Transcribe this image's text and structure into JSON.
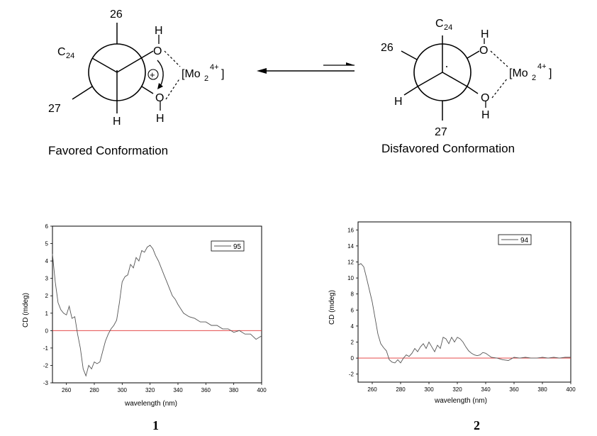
{
  "scheme": {
    "left": {
      "caption": "Favored Conformation",
      "top_sub": "26",
      "c24_base": "C",
      "c24_sub": "24",
      "bottom_left": "27",
      "bottom_h": "H",
      "oh_top_h": "H",
      "oh_top_o": "O",
      "oh_bot_o": "O",
      "oh_bot_h": "H",
      "plus": "+",
      "metal_open": "[Mo",
      "metal_sub": "2",
      "metal_sup": "4+",
      "metal_close": "]"
    },
    "right": {
      "caption": "Disfavored Conformation",
      "top_base": "C",
      "top_sub": "24",
      "left_top": "26",
      "left_h": "H",
      "bottom": "27",
      "oh_top_h": "H",
      "oh_top_o": "O",
      "oh_bot_o": "O",
      "oh_bot_h": "H",
      "metal_open": "[Mo",
      "metal_sub": "2",
      "metal_sup": "4+",
      "metal_close": "]"
    }
  },
  "chart_data": [
    {
      "type": "line",
      "panel_label": "1",
      "xlabel": "wavelength (nm)",
      "ylabel": "CD (mdeg)",
      "xlim": [
        250,
        400
      ],
      "ylim": [
        -3,
        6
      ],
      "xticks": [
        260,
        280,
        300,
        320,
        340,
        360,
        380,
        400
      ],
      "yticks": [
        -3,
        -2,
        -1,
        0,
        1,
        2,
        3,
        4,
        5,
        6
      ],
      "legend_position": "top-right",
      "series": [
        {
          "name": "95",
          "color": "#555555",
          "x": [
            250,
            252,
            254,
            256,
            258,
            260,
            262,
            264,
            266,
            268,
            270,
            272,
            274,
            276,
            278,
            280,
            282,
            284,
            286,
            288,
            290,
            292,
            294,
            296,
            298,
            300,
            302,
            304,
            306,
            308,
            310,
            312,
            314,
            316,
            318,
            320,
            322,
            324,
            326,
            328,
            330,
            332,
            334,
            336,
            338,
            340,
            344,
            348,
            352,
            356,
            360,
            364,
            368,
            372,
            376,
            380,
            384,
            388,
            392,
            396,
            400
          ],
          "y": [
            4.4,
            2.8,
            1.6,
            1.2,
            1.0,
            0.9,
            1.4,
            0.7,
            0.8,
            -0.2,
            -1.0,
            -2.2,
            -2.6,
            -2.0,
            -2.2,
            -1.8,
            -1.9,
            -1.8,
            -1.2,
            -0.6,
            -0.2,
            0.1,
            0.3,
            0.6,
            1.6,
            2.8,
            3.1,
            3.2,
            3.8,
            3.6,
            4.2,
            4.0,
            4.6,
            4.5,
            4.8,
            4.9,
            4.7,
            4.3,
            4.0,
            3.6,
            3.2,
            2.8,
            2.4,
            2.0,
            1.8,
            1.5,
            1.0,
            0.8,
            0.7,
            0.5,
            0.5,
            0.3,
            0.3,
            0.1,
            0.1,
            -0.1,
            0.0,
            -0.2,
            -0.2,
            -0.5,
            -0.3
          ]
        }
      ],
      "reference_line": {
        "y": 0,
        "color": "#e03030"
      }
    },
    {
      "type": "line",
      "panel_label": "2",
      "xlabel": "wavelength (nm)",
      "ylabel": "CD (mdeg)",
      "xlim": [
        250,
        400
      ],
      "ylim": [
        -3,
        17
      ],
      "xticks": [
        260,
        280,
        300,
        320,
        340,
        360,
        380,
        400
      ],
      "yticks": [
        -2,
        0,
        2,
        4,
        6,
        8,
        10,
        12,
        14,
        16
      ],
      "legend_position": "top-right",
      "series": [
        {
          "name": "94",
          "color": "#555555",
          "x": [
            250,
            252,
            254,
            256,
            258,
            260,
            262,
            264,
            266,
            268,
            270,
            272,
            274,
            276,
            278,
            280,
            282,
            284,
            286,
            288,
            290,
            292,
            294,
            296,
            298,
            300,
            302,
            304,
            306,
            308,
            310,
            312,
            314,
            316,
            318,
            320,
            322,
            324,
            326,
            328,
            330,
            332,
            334,
            336,
            338,
            340,
            344,
            348,
            352,
            356,
            360,
            364,
            368,
            372,
            376,
            380,
            384,
            388,
            392,
            396,
            400
          ],
          "y": [
            11.6,
            11.8,
            11.4,
            10.0,
            8.5,
            7.0,
            5.0,
            3.0,
            1.8,
            1.3,
            0.9,
            -0.2,
            -0.5,
            -0.6,
            -0.2,
            -0.6,
            0.0,
            0.4,
            0.2,
            0.6,
            1.2,
            0.8,
            1.4,
            1.8,
            1.2,
            2.0,
            1.4,
            0.8,
            1.6,
            1.2,
            2.6,
            2.4,
            1.8,
            2.6,
            2.0,
            2.6,
            2.4,
            2.0,
            1.4,
            0.9,
            0.6,
            0.4,
            0.3,
            0.4,
            0.7,
            0.6,
            0.1,
            0.0,
            -0.2,
            -0.3,
            0.1,
            0.0,
            0.1,
            0.0,
            0.0,
            0.1,
            0.0,
            0.1,
            0.0,
            0.1,
            0.1
          ]
        }
      ],
      "reference_line": {
        "y": 0,
        "color": "#e03030"
      }
    }
  ]
}
